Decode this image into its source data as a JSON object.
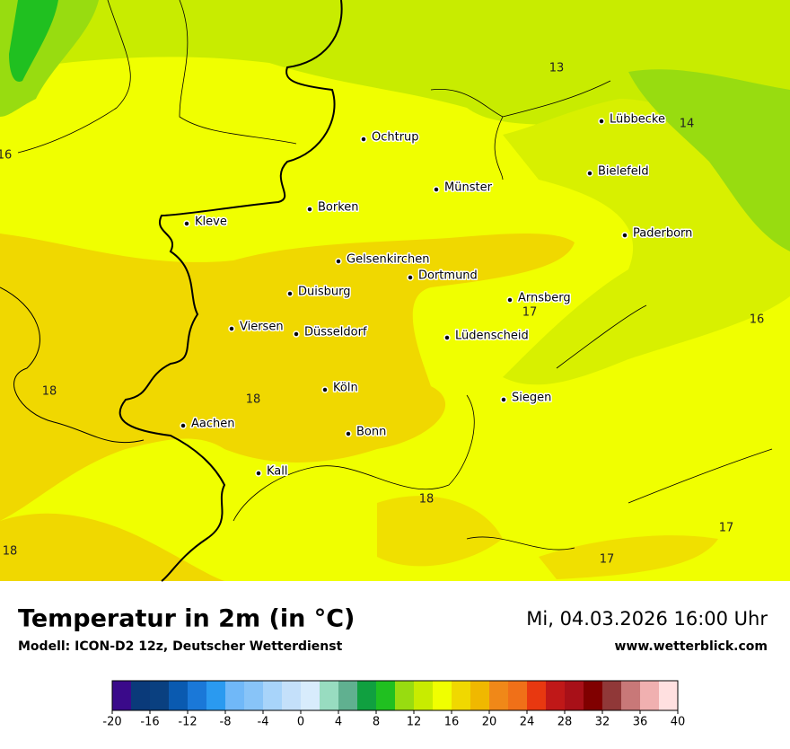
{
  "map": {
    "cities": [
      "Ochtrup",
      "Lübbecke",
      "Bielefeld",
      "Münster",
      "Borken",
      "Kleve",
      "Paderborn",
      "Gelsenkirchen",
      "Dortmund",
      "Duisburg",
      "Arnsberg",
      "Viersen",
      "Düsseldorf",
      "Lüdenscheid",
      "Köln",
      "Siegen",
      "Aachen",
      "Bonn",
      "Kall"
    ],
    "contour_labels": [
      16,
      13,
      14,
      17,
      16,
      18,
      18,
      18,
      17,
      17,
      18
    ]
  },
  "footer": {
    "title": "Temperatur in 2m (in °C)",
    "model": "Modell: ICON-D2 12z, Deutscher Wetterdienst",
    "datetime": "Mi, 04.03.2026 16:00 Uhr",
    "website": "www.wetterblick.com"
  },
  "colorbar": {
    "ticks": [
      -20,
      -16,
      -12,
      -8,
      -4,
      0,
      4,
      8,
      12,
      16,
      20,
      24,
      28,
      32,
      36,
      40
    ],
    "colors": [
      "#3a0a8a",
      "#0a3a7a",
      "#0a4080",
      "#0a5ab0",
      "#1a78d8",
      "#2a9af0",
      "#70b8f8",
      "#88c4f8",
      "#a8d4fa",
      "#c4e0fa",
      "#d8ecfc",
      "#98dcc0",
      "#60b090",
      "#10a040",
      "#20c020",
      "#98dc10",
      "#c8ec00",
      "#f0ff00",
      "#f0d800",
      "#f0b800",
      "#f08818",
      "#f07018",
      "#e83810",
      "#c01818",
      "#a81018",
      "#800000",
      "#903838",
      "#c87878",
      "#f0b0b0",
      "#ffe0e0"
    ]
  }
}
